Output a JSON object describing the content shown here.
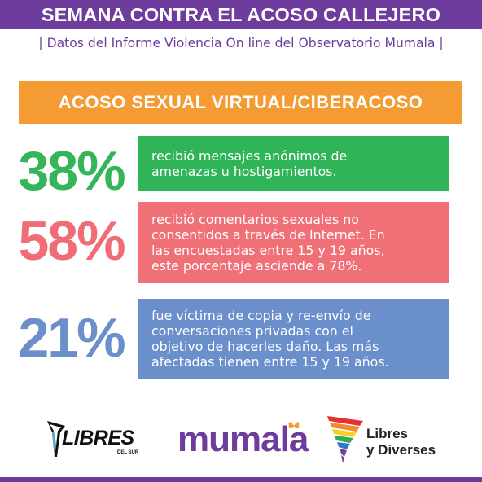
{
  "header": {
    "title": "SEMANA CONTRA EL ACOSO CALLEJERO"
  },
  "subtitle": "| Datos del Informe Violencia On line del Observatorio Mumala |",
  "section": {
    "title": "ACOSO SEXUAL VIRTUAL/CIBERACOSO"
  },
  "stats": [
    {
      "percent": "38%",
      "color": "#2fb457",
      "lines": [
        "recibió mensajes anónimos de",
        "amenazas u hostigamientos."
      ]
    },
    {
      "percent": "58%",
      "color": "#f07077",
      "lines": [
        "recibió comentarios sexuales no",
        "consentidos a través de Internet. En",
        "las encuestadas entre 15 y 19 años,",
        "este porcentaje asciende a 78%."
      ]
    },
    {
      "percent": "21%",
      "color": "#6b8fcb",
      "lines": [
        "fue víctima de copia y re-envío de",
        "conversaciones privadas con el",
        "objetivo de hacerles daño. Las más",
        "afectadas tienen entre 15 y 19 años."
      ]
    }
  ],
  "logos": {
    "libres": {
      "word": "LIBRES",
      "sub": "DEL SUR"
    },
    "mumala": {
      "word": "mumala"
    },
    "libres_y_diverses": {
      "line1": "Libres",
      "line2": "y Diverses"
    }
  },
  "colors": {
    "purple": "#6d3c9c",
    "orange": "#f49b34"
  }
}
